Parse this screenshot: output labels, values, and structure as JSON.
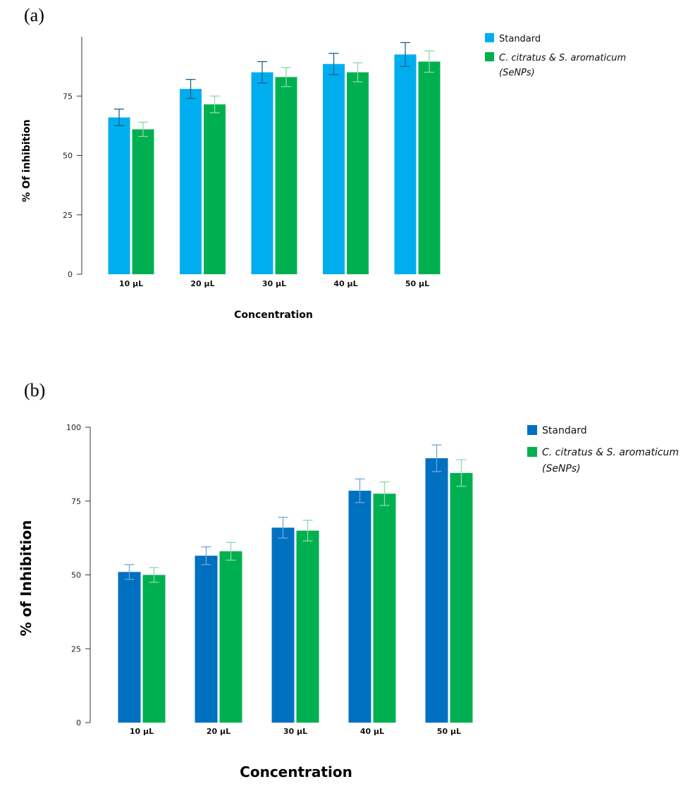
{
  "chart_data": [
    {
      "type": "bar",
      "panel_label": "(a)",
      "title": "",
      "xlabel": "Concentration",
      "ylabel": "% Of inhibition",
      "ylim": [
        0,
        100
      ],
      "yticks": [
        "0",
        "25",
        "50",
        "75"
      ],
      "ytick_values": [
        0,
        25,
        50,
        75
      ],
      "categories": [
        "10 µL",
        "20 µL",
        "30 µL",
        "40 µL",
        "50 µL"
      ],
      "legend_position": "top-right",
      "series": [
        {
          "name": "Standard",
          "color": "#00AEEF",
          "error_color": "#1F5F8B",
          "values": [
            66,
            78,
            85,
            88.5,
            92.5
          ],
          "errors": [
            3.5,
            4,
            4.5,
            4.5,
            5
          ]
        },
        {
          "name": "C. citratus & S. aromaticum",
          "name_line2": "(SeNPs)",
          "color": "#00B050",
          "error_color": "#8FD8A8",
          "values": [
            61,
            71.5,
            83,
            85,
            89.5
          ],
          "errors": [
            3,
            3.5,
            4,
            4,
            4.5
          ]
        }
      ]
    },
    {
      "type": "bar",
      "panel_label": "(b)",
      "title": "",
      "xlabel": "Concentration",
      "ylabel": "% of Inhibition",
      "ylim": [
        0,
        100
      ],
      "yticks": [
        "0",
        "25",
        "50",
        "75",
        "100"
      ],
      "ytick_values": [
        0,
        25,
        50,
        75,
        100
      ],
      "categories": [
        "10 µL",
        "20 µL",
        "30 µL",
        "40 µL",
        "50 µL"
      ],
      "legend_position": "top-right",
      "series": [
        {
          "name": "Standard",
          "color": "#0070C0",
          "error_color": "#6FA8DC",
          "values": [
            51,
            56.5,
            66,
            78.5,
            89.5
          ],
          "errors": [
            2.5,
            3,
            3.5,
            4,
            4.5
          ]
        },
        {
          "name": "C. citratus & S. aromaticum",
          "name_line2": "(SeNPs)",
          "color": "#00B050",
          "error_color": "#8FD8A8",
          "values": [
            50,
            58,
            65,
            77.5,
            84.5
          ],
          "errors": [
            2.5,
            3,
            3.5,
            4,
            4.5
          ]
        }
      ]
    }
  ]
}
